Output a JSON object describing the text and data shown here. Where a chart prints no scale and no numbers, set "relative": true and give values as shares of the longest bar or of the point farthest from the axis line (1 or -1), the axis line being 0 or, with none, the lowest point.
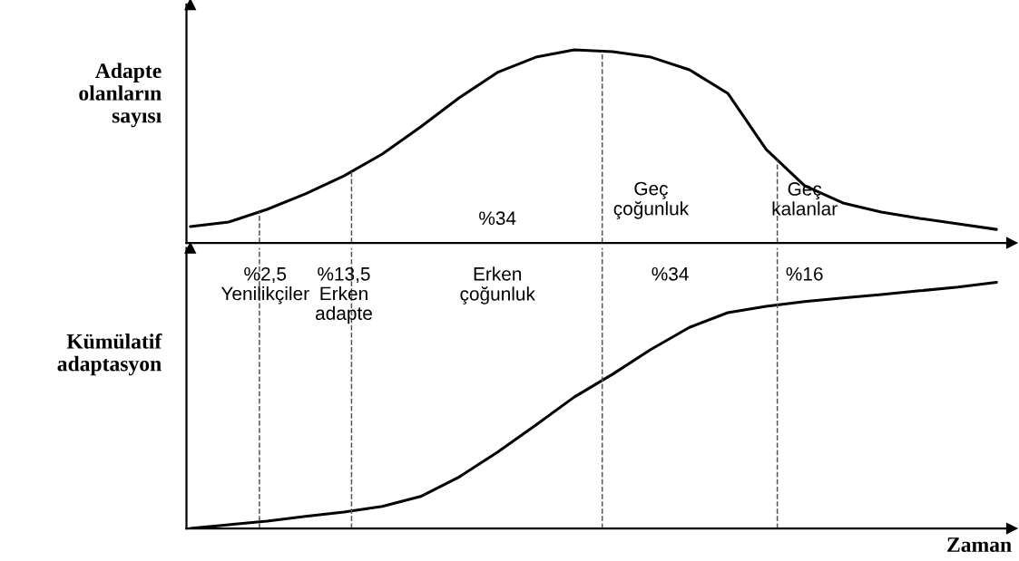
{
  "chart_data": [
    {
      "type": "line",
      "ylabel": "Adapte\nolanların\nsayısı",
      "relative": true,
      "marker": "none",
      "line_style": "solid",
      "categories": [
        null,
        null,
        null,
        null,
        null,
        null,
        null,
        null,
        null,
        null,
        null,
        null,
        null,
        null,
        null,
        null,
        null,
        null,
        null,
        null,
        null,
        null
      ],
      "series": [
        {
          "color": "#000000",
          "values": [
            0.085,
            0.108,
            0.174,
            0.254,
            0.347,
            0.46,
            0.601,
            0.751,
            0.883,
            0.962,
            1.0,
            0.991,
            0.962,
            0.897,
            0.775,
            0.484,
            0.296,
            0.207,
            0.16,
            0.127,
            0.099,
            0.07
          ]
        }
      ],
      "annotations": [
        "%2,5\nYenilikçiler",
        "%13,5\nErken\nadapte",
        "%34",
        "Erken\nçoğunluk",
        "Geç\nçoğunluk",
        "%34",
        "Geç\nkalanlar",
        "%16"
      ]
    },
    {
      "type": "line",
      "ylabel": "Kümülatif\nadaptasyon",
      "xlabel": "Zaman",
      "relative": true,
      "marker": "none",
      "line_style": "solid",
      "categories": [
        null,
        null,
        null,
        null,
        null,
        null,
        null,
        null,
        null,
        null,
        null,
        null,
        null,
        null,
        null,
        null,
        null,
        null,
        null,
        null,
        null,
        null
      ],
      "series": [
        {
          "color": "#000000",
          "values": [
            0.0,
            0.015,
            0.03,
            0.049,
            0.067,
            0.09,
            0.13,
            0.209,
            0.31,
            0.42,
            0.534,
            0.627,
            0.728,
            0.817,
            0.877,
            0.903,
            0.922,
            0.937,
            0.951,
            0.966,
            0.981,
            1.0
          ]
        }
      ]
    }
  ]
}
